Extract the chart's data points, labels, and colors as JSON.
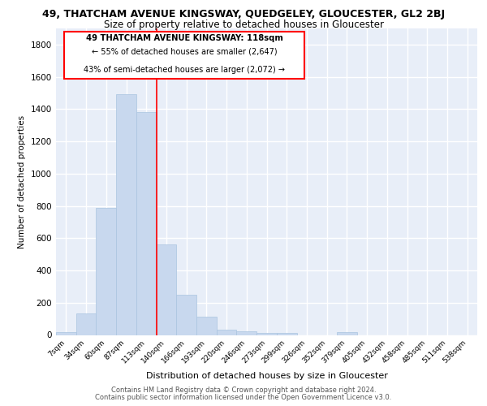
{
  "title": "49, THATCHAM AVENUE KINGSWAY, QUEDGELEY, GLOUCESTER, GL2 2BJ",
  "subtitle": "Size of property relative to detached houses in Gloucester",
  "xlabel": "Distribution of detached houses by size in Gloucester",
  "ylabel": "Number of detached properties",
  "bar_color": "#c8d8ee",
  "bar_edge_color": "#aac4e0",
  "background_color": "#e8eef8",
  "grid_color": "#ffffff",
  "categories": [
    "7sqm",
    "34sqm",
    "60sqm",
    "87sqm",
    "113sqm",
    "140sqm",
    "166sqm",
    "193sqm",
    "220sqm",
    "246sqm",
    "273sqm",
    "299sqm",
    "326sqm",
    "352sqm",
    "379sqm",
    "405sqm",
    "432sqm",
    "458sqm",
    "485sqm",
    "511sqm",
    "538sqm"
  ],
  "values": [
    20,
    135,
    790,
    1490,
    1380,
    560,
    248,
    115,
    35,
    25,
    15,
    15,
    0,
    0,
    20,
    0,
    0,
    0,
    0,
    0,
    0
  ],
  "ylim": [
    0,
    1900
  ],
  "yticks": [
    0,
    200,
    400,
    600,
    800,
    1000,
    1200,
    1400,
    1600,
    1800
  ],
  "red_line_x": 4.5,
  "annotation_title": "49 THATCHAM AVENUE KINGSWAY: 118sqm",
  "annotation_line1": "← 55% of detached houses are smaller (2,647)",
  "annotation_line2": "43% of semi-detached houses are larger (2,072) →",
  "footer1": "Contains HM Land Registry data © Crown copyright and database right 2024.",
  "footer2": "Contains public sector information licensed under the Open Government Licence v3.0."
}
